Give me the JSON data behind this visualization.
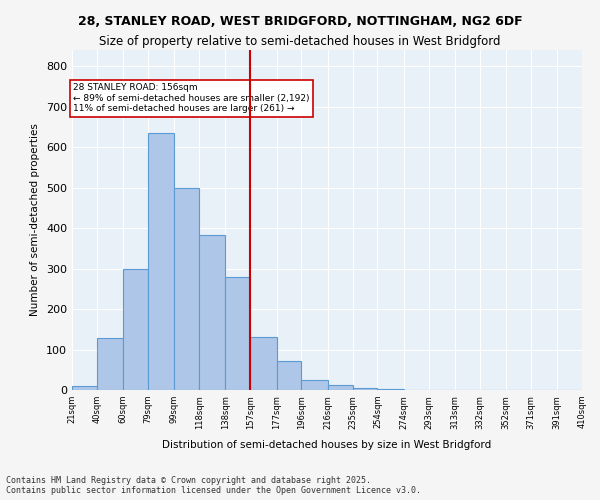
{
  "title1": "28, STANLEY ROAD, WEST BRIDGFORD, NOTTINGHAM, NG2 6DF",
  "title2": "Size of property relative to semi-detached houses in West Bridgford",
  "xlabel": "Distribution of semi-detached houses by size in West Bridgford",
  "ylabel": "Number of semi-detached properties",
  "bin_edges": [
    21,
    40,
    60,
    79,
    99,
    118,
    138,
    157,
    177,
    196,
    216,
    235,
    254,
    274,
    293,
    313,
    332,
    352,
    371,
    391,
    410
  ],
  "counts": [
    10,
    128,
    300,
    635,
    500,
    383,
    280,
    130,
    72,
    25,
    13,
    5,
    2,
    0,
    0,
    0,
    0,
    0,
    0,
    0
  ],
  "bar_color": "#aec6e8",
  "bar_edge_color": "#5b9bd5",
  "vline_x": 157,
  "vline_color": "#cc0000",
  "annotation_title": "28 STANLEY ROAD: 156sqm",
  "annotation_line1": "← 89% of semi-detached houses are smaller (2,192)",
  "annotation_line2": "11% of semi-detached houses are larger (261) →",
  "annotation_box_color": "#ffffff",
  "annotation_box_edge": "#cc0000",
  "ylim": [
    0,
    840
  ],
  "yticks": [
    0,
    100,
    200,
    300,
    400,
    500,
    600,
    700,
    800
  ],
  "bg_color": "#e8f0f8",
  "grid_color": "#ffffff",
  "footer1": "Contains HM Land Registry data © Crown copyright and database right 2025.",
  "footer2": "Contains public sector information licensed under the Open Government Licence v3.0."
}
